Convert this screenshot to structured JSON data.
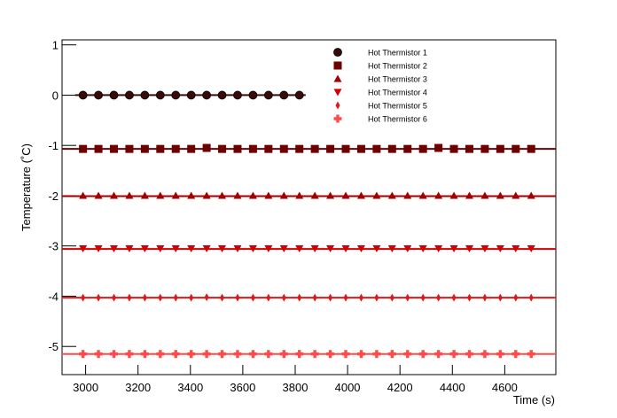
{
  "chart_data": {
    "type": "scatter",
    "xlabel": "Time (s)",
    "ylabel": "Temperature (˚C)",
    "xlim": [
      2910,
      4795
    ],
    "ylim": [
      -5.56,
      1.1
    ],
    "xticks": [
      3000,
      3200,
      3400,
      3600,
      3800,
      4000,
      4200,
      4400,
      4600
    ],
    "yticks": [
      1,
      0,
      -1,
      -2,
      -3,
      -4,
      -5
    ],
    "legend": "top-right",
    "x": [
      2990,
      3049,
      3108,
      3167,
      3226,
      3285,
      3344,
      3403,
      3462,
      3521,
      3580,
      3639,
      3698,
      3757,
      3816,
      3875,
      3934,
      3993,
      4052,
      4111,
      4170,
      4229,
      4288,
      4347,
      4406,
      4465,
      4524,
      4583,
      4642,
      4701
    ],
    "series": [
      {
        "name": "Hot Thermistor 1",
        "color": "#3a0a0a",
        "marker": "circle",
        "fit": 0,
        "fit_range": [
          2960,
          3840
        ],
        "values": [
          0,
          0,
          0,
          0,
          0,
          0,
          0,
          0,
          0,
          0,
          0,
          0,
          0,
          0,
          0,
          null,
          null,
          null,
          null,
          null,
          null,
          null,
          null,
          null,
          null,
          null,
          null,
          null,
          null,
          null
        ]
      },
      {
        "name": "Hot Thermistor 2",
        "color": "#6e0000",
        "marker": "square",
        "fit": -1.07,
        "fit_range": [
          2910,
          4795
        ],
        "values": [
          -1.07,
          -1.07,
          -1.07,
          -1.07,
          -1.07,
          -1.07,
          -1.07,
          -1.07,
          -1.05,
          -1.07,
          -1.07,
          -1.07,
          -1.07,
          -1.07,
          -1.07,
          -1.07,
          -1.07,
          -1.07,
          -1.07,
          -1.07,
          -1.07,
          -1.07,
          -1.07,
          -1.05,
          -1.07,
          -1.07,
          -1.07,
          -1.07,
          -1.07,
          -1.07
        ]
      },
      {
        "name": "Hot Thermistor 3",
        "color": "#a00000",
        "marker": "triangle-up",
        "fit": -2.01,
        "fit_range": [
          2910,
          4795
        ],
        "values": [
          -2.0,
          -2.0,
          -2.0,
          -2.0,
          -2.0,
          -2.0,
          -2.0,
          -2.0,
          -2.0,
          -2.0,
          -2.0,
          -2.0,
          -2.0,
          -2.0,
          -2.0,
          -2.0,
          -2.0,
          -2.0,
          -2.0,
          -2.0,
          -2.0,
          -2.0,
          -2.0,
          -2.0,
          -2.0,
          -2.0,
          -2.0,
          -2.0,
          -2.0,
          -2.0
        ]
      },
      {
        "name": "Hot Thermistor 4",
        "color": "#d00000",
        "marker": "triangle-down",
        "fit": -3.06,
        "fit_range": [
          2910,
          4795
        ],
        "values": [
          -3.05,
          -3.05,
          -3.05,
          -3.05,
          -3.05,
          -3.05,
          -3.05,
          -3.05,
          -3.05,
          -3.05,
          -3.05,
          -3.05,
          -3.05,
          -3.05,
          -3.05,
          -3.05,
          -3.05,
          -3.05,
          -3.05,
          -3.05,
          -3.05,
          -3.05,
          -3.05,
          -3.05,
          -3.05,
          -3.05,
          -3.05,
          -3.05,
          -3.05,
          -3.05
        ]
      },
      {
        "name": "Hot Thermistor 5",
        "color": "#e01818",
        "marker": "diamond",
        "fit": -4.03,
        "fit_range": [
          2910,
          4795
        ],
        "values": [
          -4.03,
          -4.03,
          -4.03,
          -4.03,
          -4.03,
          -4.03,
          -4.03,
          -4.03,
          -4.02,
          -4.03,
          -4.03,
          -4.03,
          -4.03,
          -4.03,
          -4.03,
          -4.03,
          -4.03,
          -4.03,
          -4.03,
          -4.03,
          -4.03,
          -4.03,
          -4.03,
          -4.03,
          -4.03,
          -4.03,
          -4.03,
          -4.03,
          -4.03,
          -4.03
        ]
      },
      {
        "name": "Hot Thermistor 6",
        "color": "#ff4a4a",
        "marker": "cross",
        "fit": -5.15,
        "fit_range": [
          2910,
          4795
        ],
        "values": [
          -5.15,
          -5.15,
          -5.15,
          -5.15,
          -5.15,
          -5.15,
          -5.15,
          -5.15,
          -5.15,
          -5.15,
          -5.15,
          -5.15,
          -5.15,
          -5.15,
          -5.15,
          -5.15,
          -5.15,
          -5.15,
          -5.15,
          -5.15,
          -5.15,
          -5.15,
          -5.15,
          -5.15,
          -5.15,
          -5.15,
          -5.15,
          -5.15,
          -5.15,
          -5.15
        ]
      }
    ]
  }
}
